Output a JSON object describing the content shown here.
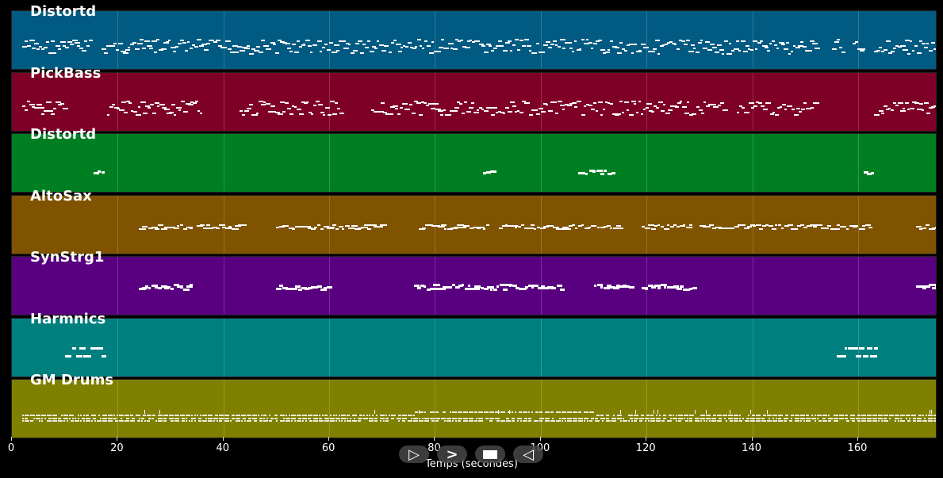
{
  "timeline": {
    "max_seconds": 175,
    "ticks": [
      0,
      20,
      40,
      60,
      80,
      100,
      120,
      140,
      160
    ],
    "xlabel": "Temps (secondes)"
  },
  "tracks": [
    {
      "name": "Distortd",
      "color": "#005a82",
      "density": "dense"
    },
    {
      "name": "PickBass",
      "color": "#7e0028",
      "density": "dense"
    },
    {
      "name": "Distortd",
      "color": "#007f22",
      "density": "sparse"
    },
    {
      "name": "AltoSax",
      "color": "#7f5300",
      "density": "medium"
    },
    {
      "name": "SynStrg1",
      "color": "#58007f",
      "density": "medium"
    },
    {
      "name": "Harmnics",
      "color": "#007f7f",
      "density": "sparse"
    },
    {
      "name": "GM Drums",
      "color": "#7f7f00",
      "density": "drums"
    }
  ],
  "controls": {
    "play_icon": "play-outline-icon",
    "forward_icon": "chevron-right-icon",
    "stop_icon": "stop-icon",
    "rewind_icon": "play-reverse-outline-icon"
  }
}
